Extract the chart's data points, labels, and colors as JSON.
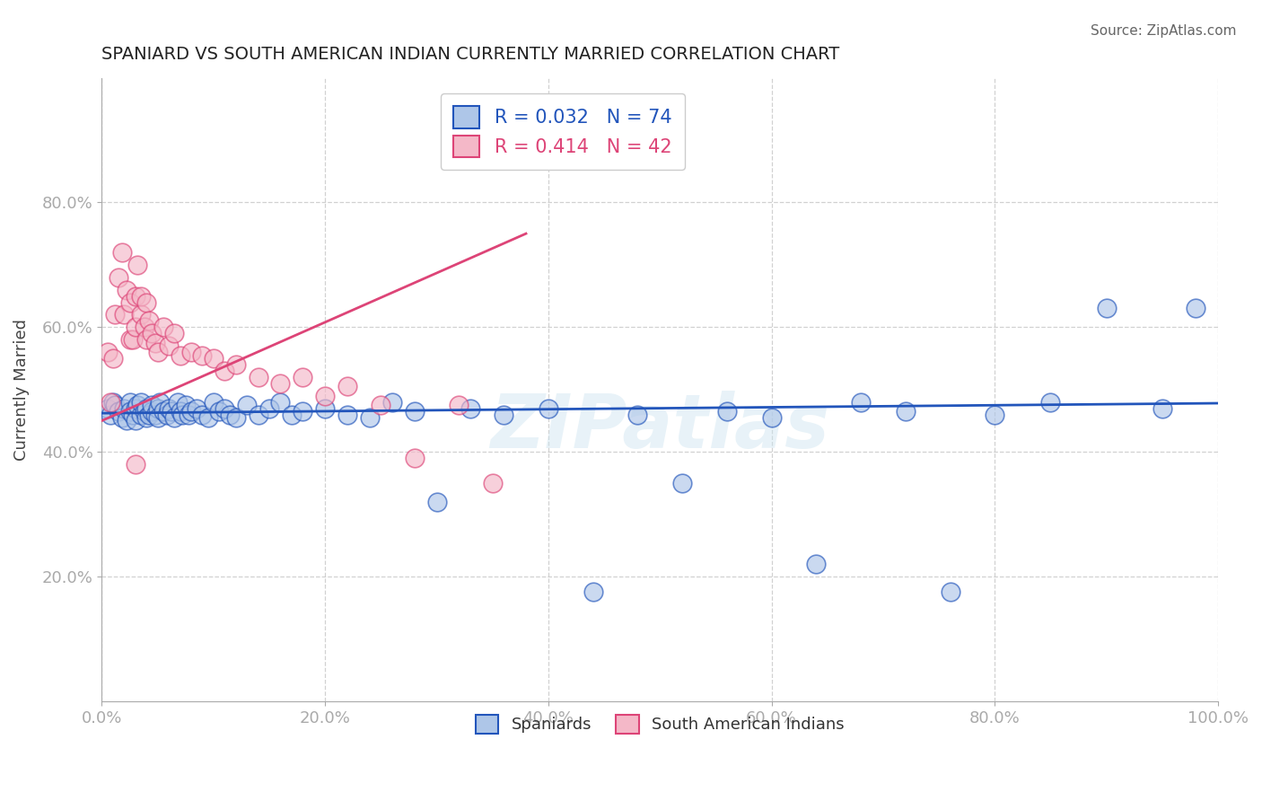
{
  "title": "SPANIARD VS SOUTH AMERICAN INDIAN CURRENTLY MARRIED CORRELATION CHART",
  "source": "Source: ZipAtlas.com",
  "ylabel": "Currently Married",
  "xlim": [
    0.0,
    1.0
  ],
  "ylim": [
    0.0,
    1.0
  ],
  "xtick_labels": [
    "0.0%",
    "20.0%",
    "40.0%",
    "60.0%",
    "80.0%",
    "100.0%"
  ],
  "xtick_vals": [
    0.0,
    0.2,
    0.4,
    0.6,
    0.8,
    1.0
  ],
  "ytick_labels": [
    "20.0%",
    "40.0%",
    "60.0%",
    "80.0%"
  ],
  "ytick_vals": [
    0.2,
    0.4,
    0.6,
    0.8
  ],
  "spaniards_R": 0.032,
  "spaniards_N": 74,
  "sai_R": 0.414,
  "sai_N": 42,
  "spaniards_color": "#aec6e8",
  "sai_color": "#f4b8c8",
  "spaniards_line_color": "#2255bb",
  "sai_line_color": "#dd4477",
  "legend_spaniards": "Spaniards",
  "legend_sai": "South American Indians",
  "watermark": "ZIPatlas",
  "spaniards_x": [
    0.005,
    0.008,
    0.01,
    0.012,
    0.015,
    0.018,
    0.02,
    0.022,
    0.025,
    0.025,
    0.028,
    0.03,
    0.03,
    0.032,
    0.035,
    0.035,
    0.038,
    0.04,
    0.04,
    0.042,
    0.045,
    0.045,
    0.048,
    0.05,
    0.05,
    0.052,
    0.055,
    0.058,
    0.06,
    0.062,
    0.065,
    0.068,
    0.07,
    0.072,
    0.075,
    0.078,
    0.08,
    0.085,
    0.09,
    0.095,
    0.1,
    0.105,
    0.11,
    0.115,
    0.12,
    0.13,
    0.14,
    0.15,
    0.16,
    0.17,
    0.18,
    0.2,
    0.22,
    0.24,
    0.26,
    0.28,
    0.3,
    0.33,
    0.36,
    0.4,
    0.44,
    0.48,
    0.52,
    0.56,
    0.6,
    0.64,
    0.68,
    0.72,
    0.76,
    0.8,
    0.85,
    0.9,
    0.95,
    0.98
  ],
  "spaniards_y": [
    0.47,
    0.46,
    0.48,
    0.475,
    0.465,
    0.455,
    0.47,
    0.45,
    0.48,
    0.465,
    0.46,
    0.47,
    0.45,
    0.475,
    0.46,
    0.48,
    0.465,
    0.47,
    0.455,
    0.46,
    0.465,
    0.475,
    0.46,
    0.47,
    0.455,
    0.48,
    0.465,
    0.46,
    0.47,
    0.465,
    0.455,
    0.48,
    0.465,
    0.46,
    0.475,
    0.46,
    0.465,
    0.47,
    0.46,
    0.455,
    0.48,
    0.465,
    0.47,
    0.46,
    0.455,
    0.475,
    0.46,
    0.47,
    0.48,
    0.46,
    0.465,
    0.47,
    0.46,
    0.455,
    0.48,
    0.465,
    0.32,
    0.47,
    0.46,
    0.47,
    0.175,
    0.46,
    0.35,
    0.465,
    0.455,
    0.22,
    0.48,
    0.465,
    0.175,
    0.46,
    0.48,
    0.63,
    0.47,
    0.63
  ],
  "sai_x": [
    0.005,
    0.008,
    0.01,
    0.012,
    0.015,
    0.018,
    0.02,
    0.022,
    0.025,
    0.025,
    0.028,
    0.03,
    0.03,
    0.032,
    0.035,
    0.035,
    0.038,
    0.04,
    0.04,
    0.042,
    0.045,
    0.048,
    0.05,
    0.055,
    0.06,
    0.065,
    0.07,
    0.08,
    0.09,
    0.1,
    0.11,
    0.12,
    0.14,
    0.16,
    0.18,
    0.2,
    0.22,
    0.25,
    0.28,
    0.32,
    0.35,
    0.03
  ],
  "sai_y": [
    0.56,
    0.48,
    0.55,
    0.62,
    0.68,
    0.72,
    0.62,
    0.66,
    0.58,
    0.64,
    0.58,
    0.65,
    0.6,
    0.7,
    0.62,
    0.65,
    0.6,
    0.58,
    0.64,
    0.61,
    0.59,
    0.575,
    0.56,
    0.6,
    0.57,
    0.59,
    0.555,
    0.56,
    0.555,
    0.55,
    0.53,
    0.54,
    0.52,
    0.51,
    0.52,
    0.49,
    0.505,
    0.475,
    0.39,
    0.475,
    0.35,
    0.38
  ],
  "sp_line_x0": 0.0,
  "sp_line_x1": 1.0,
  "sp_line_y0": 0.462,
  "sp_line_y1": 0.478,
  "sai_line_x0": 0.0,
  "sai_line_x1": 0.38,
  "sai_line_y0": 0.45,
  "sai_line_y1": 0.75
}
